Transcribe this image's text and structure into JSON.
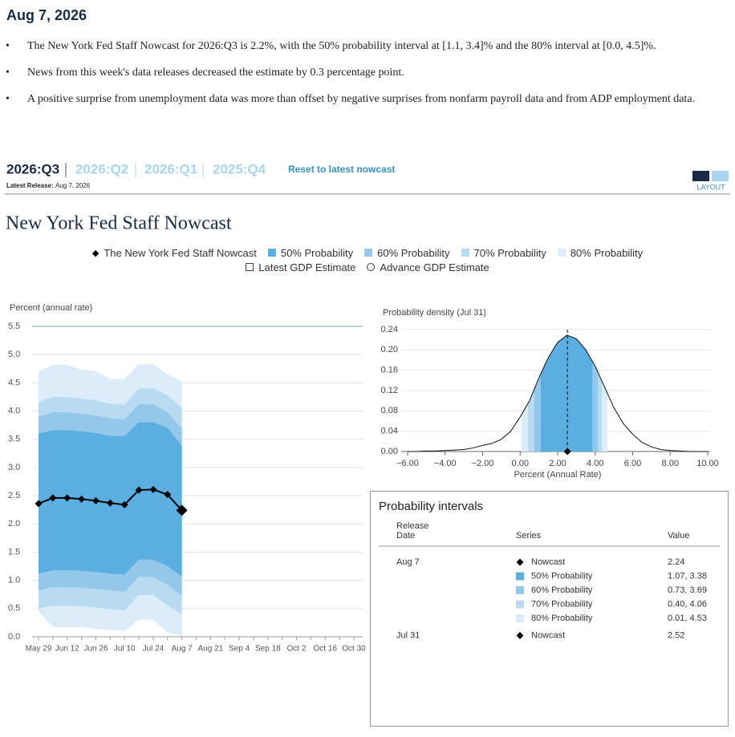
{
  "header": {
    "date": "Aug 7, 2026",
    "bullets": [
      "The New York Fed Staff Nowcast for 2026:Q3 is 2.2%, with the 50% probability interval at [1.1, 3.4]% and the 80% interval at [0.0, 4.5]%.",
      "News from this week's data releases decreased the estimate by 0.3 percentage point.",
      "A positive surprise from unemployment data was more than offset by negative surprises from nonfarm payroll data and from ADP employment data."
    ]
  },
  "tabs": {
    "items": [
      "2026:Q3",
      "2026:Q2",
      "2026:Q1",
      "2025:Q4"
    ],
    "reset": "Reset to latest nowcast",
    "release_label": "Latest Release:",
    "release_date": "Aug 7, 2026",
    "layout": "LAYOUT"
  },
  "section_title": "New York Fed Staff Nowcast",
  "chart_data": [
    {
      "type": "band-line",
      "y_label": "Percent (annual rate)",
      "categories": [
        "May 29",
        null,
        "Jun 12",
        null,
        "Jun 26",
        null,
        "Jul 10",
        null,
        "Jul 24",
        null,
        "Aug 7",
        null,
        "Aug 21",
        null,
        "Sep 4",
        null,
        "Sep 18",
        null,
        "Oct 2",
        null,
        "Oct 16",
        null,
        "Oct 30"
      ],
      "series": [
        {
          "name": "The New York Fed Staff Nowcast",
          "color": "#000000",
          "values": [
            2.36,
            2.46,
            2.46,
            2.44,
            2.41,
            2.37,
            2.34,
            2.6,
            2.61,
            2.52,
            2.24,
            null,
            null,
            null,
            null,
            null,
            null,
            null,
            null,
            null,
            null,
            null,
            null
          ]
        }
      ],
      "bands": [
        {
          "name": "50% Probability",
          "color": "#5aafe0",
          "low": [
            1.12,
            1.18,
            1.18,
            1.17,
            1.15,
            1.12,
            1.1,
            1.37,
            1.37,
            1.25,
            1.07,
            null,
            null,
            null,
            null,
            null,
            null,
            null,
            null,
            null,
            null,
            null,
            null
          ],
          "high": [
            3.6,
            3.66,
            3.66,
            3.64,
            3.61,
            3.56,
            3.55,
            3.8,
            3.8,
            3.7,
            3.38,
            null,
            null,
            null,
            null,
            null,
            null,
            null,
            null,
            null,
            null,
            null,
            null
          ]
        },
        {
          "name": "60% Probability",
          "color": "#93c8ea",
          "low": [
            0.82,
            0.88,
            0.88,
            0.87,
            0.85,
            0.82,
            0.8,
            1.06,
            1.06,
            0.92,
            0.73,
            null,
            null,
            null,
            null,
            null,
            null,
            null,
            null,
            null,
            null,
            null,
            null
          ],
          "high": [
            3.9,
            3.98,
            3.98,
            3.95,
            3.92,
            3.87,
            3.85,
            4.12,
            4.12,
            3.98,
            3.69,
            null,
            null,
            null,
            null,
            null,
            null,
            null,
            null,
            null,
            null,
            null,
            null
          ]
        },
        {
          "name": "70% Probability",
          "color": "#b8dbf1",
          "low": [
            0.5,
            0.55,
            0.55,
            0.54,
            0.52,
            0.49,
            0.47,
            0.74,
            0.74,
            0.55,
            0.4,
            null,
            null,
            null,
            null,
            null,
            null,
            null,
            null,
            null,
            null,
            null,
            null
          ],
          "high": [
            4.16,
            4.25,
            4.25,
            4.22,
            4.19,
            4.13,
            4.11,
            4.4,
            4.4,
            4.28,
            4.06,
            null,
            null,
            null,
            null,
            null,
            null,
            null,
            null,
            null,
            null,
            null,
            null
          ]
        },
        {
          "name": "80% Probability",
          "color": "#dcedf9",
          "low": [
            0.45,
            0.17,
            0.17,
            0.17,
            0.14,
            0.12,
            0.1,
            0.3,
            0.3,
            0.08,
            0.01,
            null,
            null,
            null,
            null,
            null,
            null,
            null,
            null,
            null,
            null,
            null,
            null
          ],
          "high": [
            4.7,
            4.82,
            4.82,
            4.73,
            4.71,
            4.57,
            4.57,
            4.83,
            4.83,
            4.65,
            4.53,
            null,
            null,
            null,
            null,
            null,
            null,
            null,
            null,
            null,
            null,
            null,
            null
          ]
        }
      ],
      "extra_legend": [
        {
          "name": "Latest GDP Estimate",
          "marker": "square"
        },
        {
          "name": "Advance GDP Estimate",
          "marker": "circle"
        }
      ],
      "ylim": [
        0,
        5.5
      ],
      "yticks": [
        {
          "value": 0,
          "label": "0.0"
        },
        0.5,
        {
          "value": 1,
          "label": "1.0"
        },
        1.5,
        {
          "value": 2,
          "label": "2.0"
        },
        2.5,
        {
          "value": 3,
          "label": "3.0"
        },
        3.5,
        {
          "value": 4,
          "label": "4.0"
        },
        4.5,
        {
          "value": 5,
          "label": "5.0"
        },
        5.5
      ],
      "grid": true
    },
    {
      "type": "density",
      "title": "Probability density (Jul 31)",
      "x_label": "Percent (Annual Rate)",
      "x": [
        -6,
        -5.5,
        -5,
        -4.5,
        -4,
        -3.5,
        -3,
        -2.5,
        -2,
        -1.5,
        -1,
        -0.5,
        0,
        0.5,
        1,
        1.5,
        2,
        2.5,
        3,
        3.5,
        4,
        4.5,
        5,
        5.5,
        6,
        6.5,
        7,
        7.5,
        8,
        8.5,
        9,
        9.5,
        10
      ],
      "values": [
        0,
        0,
        0.001,
        0.001,
        0.002,
        0.003,
        0.004,
        0.007,
        0.012,
        0.016,
        0.024,
        0.04,
        0.068,
        0.1,
        0.145,
        0.185,
        0.215,
        0.229,
        0.222,
        0.2,
        0.168,
        0.127,
        0.086,
        0.055,
        0.034,
        0.018,
        0.009,
        0.004,
        0.002,
        0.001,
        0,
        0,
        0
      ],
      "intervals": [
        [
          1.1,
          3.85
        ],
        [
          0.75,
          4.15
        ],
        [
          0.42,
          4.35
        ],
        [
          0.07,
          4.65
        ]
      ],
      "nowcast": 2.52,
      "xlim": [
        -6,
        10
      ],
      "ylim": [
        0,
        0.24
      ],
      "xticks": [
        {
          "value": -6,
          "label": "−6.00"
        },
        {
          "value": -4,
          "label": "−4.00"
        },
        {
          "value": -2,
          "label": "−2.00"
        },
        {
          "value": 0,
          "label": "0.00"
        },
        {
          "value": 2,
          "label": "2.00"
        },
        {
          "value": 4,
          "label": "4.00"
        },
        {
          "value": 6,
          "label": "6.00"
        },
        {
          "value": 8,
          "label": "8.00"
        },
        {
          "value": 10,
          "label": "10.00"
        }
      ],
      "yticks": [
        {
          "value": 0,
          "label": "0.00"
        },
        0.04,
        0.08,
        0.12,
        0.16,
        {
          "value": 0.2,
          "label": "0.20"
        },
        0.24
      ],
      "grid": true
    }
  ],
  "table": {
    "title": "Probability intervals",
    "columns": [
      "Release Date",
      "Series",
      "Value"
    ],
    "groups": [
      {
        "date": "Aug 7",
        "rows": [
          [
            "Nowcast",
            "2.24"
          ],
          [
            "50% Probability",
            "1.07, 3.38"
          ],
          [
            "60% Probability",
            "0.73, 3.69"
          ],
          [
            "70% Probability",
            "0.40, 4.06"
          ],
          [
            "80% Probability",
            "0.01, 4.53"
          ]
        ]
      },
      {
        "date": "Jul 31",
        "rows": [
          [
            "Nowcast",
            "2.52"
          ]
        ]
      }
    ]
  }
}
